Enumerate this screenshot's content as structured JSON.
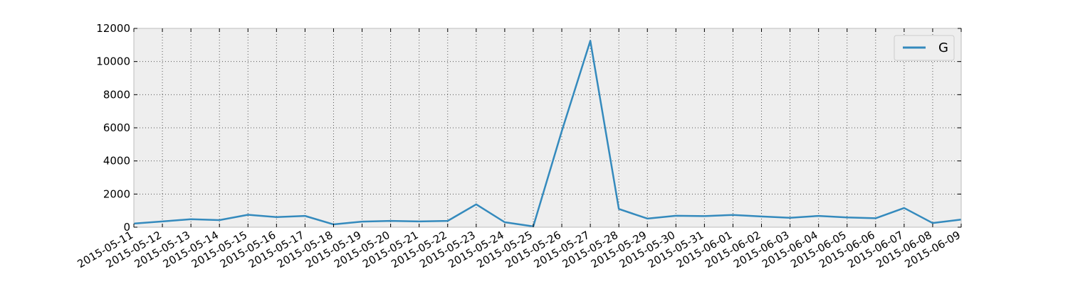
{
  "chart_data": {
    "type": "line",
    "title": "",
    "xlabel": "",
    "ylabel": "",
    "x": [
      "2015-05-11",
      "2015-05-12",
      "2015-05-13",
      "2015-05-14",
      "2015-05-15",
      "2015-05-16",
      "2015-05-17",
      "2015-05-18",
      "2015-05-19",
      "2015-05-20",
      "2015-05-21",
      "2015-05-22",
      "2015-05-23",
      "2015-05-24",
      "2015-05-25",
      "2015-05-26",
      "2015-05-27",
      "2015-05-28",
      "2015-05-29",
      "2015-05-30",
      "2015-05-31",
      "2015-06-01",
      "2015-06-02",
      "2015-06-03",
      "2015-06-04",
      "2015-06-05",
      "2015-06-06",
      "2015-06-07",
      "2015-06-08",
      "2015-06-09"
    ],
    "series": [
      {
        "name": "G",
        "color": "#348abd",
        "values": [
          220,
          350,
          480,
          430,
          750,
          610,
          680,
          170,
          340,
          380,
          350,
          380,
          1380,
          300,
          50,
          5800,
          11250,
          1100,
          520,
          690,
          670,
          740,
          650,
          570,
          680,
          590,
          540,
          1160,
          250,
          460
        ]
      }
    ],
    "ylim": [
      0,
      12000
    ],
    "yticks": [
      0,
      2000,
      4000,
      6000,
      8000,
      10000,
      12000
    ],
    "grid": true,
    "legend_position": "top-right",
    "background_color": "#eeeeee"
  }
}
